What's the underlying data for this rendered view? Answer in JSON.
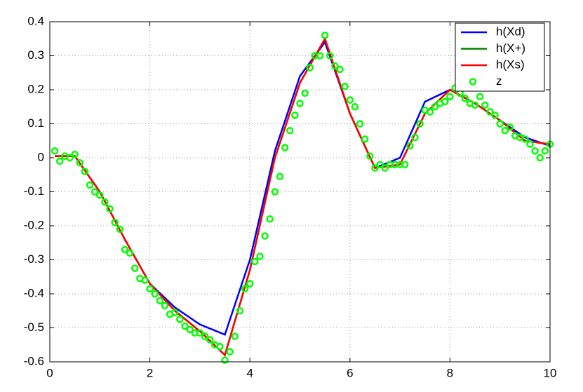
{
  "chart_data": {
    "type": "line",
    "xlim": [
      0,
      10
    ],
    "xticks": [
      0,
      2,
      4,
      6,
      8,
      10
    ],
    "ylim": [
      -0.6,
      0.4
    ],
    "yticks": [
      -0.6,
      -0.5,
      -0.4,
      -0.3,
      -0.2,
      -0.1,
      0,
      0.1,
      0.2,
      0.3,
      0.4
    ],
    "grid": true,
    "legend": "upper-right",
    "series": [
      {
        "name": "h(Xd)",
        "color": "#0000ff",
        "style": "line",
        "x": [
          0.1,
          0.5,
          1,
          1.5,
          2,
          2.5,
          3,
          3.5,
          4,
          4.5,
          5,
          5.5,
          6,
          6.5,
          7,
          7.5,
          8,
          8.5,
          9,
          9.5,
          10
        ],
        "values": [
          0.005,
          0.005,
          -0.1,
          -0.24,
          -0.37,
          -0.44,
          -0.49,
          -0.52,
          -0.3,
          0.02,
          0.24,
          0.34,
          0.13,
          -0.03,
          0.0,
          0.165,
          0.2,
          0.16,
          0.11,
          0.06,
          0.035
        ]
      },
      {
        "name": "h(X+)",
        "color": "#008000",
        "style": "line",
        "x": [
          0.1,
          0.5,
          1,
          1.5,
          2,
          2.5,
          3,
          3.5,
          4,
          4.5,
          5,
          5.5,
          6,
          6.5,
          7,
          7.5,
          8,
          8.5,
          9,
          9.5,
          10
        ],
        "values": [
          0.005,
          0.005,
          -0.1,
          -0.24,
          -0.37,
          -0.45,
          -0.51,
          -0.58,
          -0.33,
          0.0,
          0.22,
          0.35,
          0.13,
          -0.03,
          -0.02,
          0.13,
          0.2,
          0.16,
          0.11,
          0.05,
          0.04
        ]
      },
      {
        "name": "h(Xs)",
        "color": "#ff0000",
        "style": "line",
        "x": [
          0.1,
          0.5,
          1,
          1.5,
          2,
          2.5,
          3,
          3.5,
          4,
          4.5,
          5,
          5.5,
          6,
          6.5,
          7,
          7.5,
          8,
          8.5,
          9,
          9.5,
          10
        ],
        "values": [
          0.005,
          0.005,
          -0.1,
          -0.24,
          -0.37,
          -0.45,
          -0.51,
          -0.58,
          -0.33,
          0.0,
          0.22,
          0.35,
          0.13,
          -0.03,
          -0.02,
          0.13,
          0.2,
          0.16,
          0.11,
          0.05,
          0.04
        ]
      },
      {
        "name": "z",
        "color": "#00ff00",
        "style": "marker",
        "x": [
          0.1,
          0.2,
          0.3,
          0.4,
          0.5,
          0.6,
          0.7,
          0.8,
          0.9,
          1.0,
          1.1,
          1.2,
          1.3,
          1.4,
          1.5,
          1.6,
          1.7,
          1.8,
          1.9,
          2.0,
          2.1,
          2.2,
          2.3,
          2.4,
          2.5,
          2.6,
          2.7,
          2.8,
          2.9,
          3.0,
          3.1,
          3.2,
          3.3,
          3.4,
          3.5,
          3.6,
          3.7,
          3.8,
          3.9,
          4.0,
          4.1,
          4.2,
          4.3,
          4.4,
          4.5,
          4.6,
          4.7,
          4.8,
          4.9,
          5.0,
          5.1,
          5.2,
          5.3,
          5.4,
          5.5,
          5.6,
          5.7,
          5.8,
          5.9,
          6.0,
          6.1,
          6.2,
          6.3,
          6.4,
          6.5,
          6.6,
          6.7,
          6.8,
          6.9,
          7.0,
          7.1,
          7.2,
          7.3,
          7.4,
          7.5,
          7.6,
          7.7,
          7.8,
          7.9,
          8.0,
          8.1,
          8.2,
          8.3,
          8.4,
          8.5,
          8.6,
          8.7,
          8.8,
          8.9,
          9.0,
          9.1,
          9.2,
          9.3,
          9.4,
          9.5,
          9.6,
          9.7,
          9.8,
          9.9,
          10.0
        ],
        "values": [
          0.02,
          -0.01,
          0.005,
          0.0,
          0.01,
          -0.015,
          -0.04,
          -0.08,
          -0.1,
          -0.11,
          -0.13,
          -0.15,
          -0.19,
          -0.21,
          -0.27,
          -0.28,
          -0.325,
          -0.355,
          -0.36,
          -0.385,
          -0.4,
          -0.42,
          -0.435,
          -0.46,
          -0.455,
          -0.475,
          -0.495,
          -0.505,
          -0.515,
          -0.515,
          -0.525,
          -0.535,
          -0.55,
          -0.555,
          -0.595,
          -0.57,
          -0.525,
          -0.45,
          -0.385,
          -0.37,
          -0.305,
          -0.29,
          -0.23,
          -0.18,
          -0.1,
          -0.055,
          0.03,
          0.08,
          0.125,
          0.16,
          0.19,
          0.265,
          0.3,
          0.3,
          0.36,
          0.3,
          0.27,
          0.26,
          0.21,
          0.17,
          0.15,
          0.1,
          0.055,
          0.005,
          -0.03,
          -0.02,
          -0.03,
          -0.02,
          -0.02,
          -0.02,
          -0.02,
          0.035,
          0.06,
          0.1,
          0.14,
          0.135,
          0.15,
          0.16,
          0.165,
          0.18,
          0.205,
          0.19,
          0.175,
          0.16,
          0.155,
          0.18,
          0.155,
          0.135,
          0.125,
          0.1,
          0.08,
          0.09,
          0.065,
          0.06,
          0.055,
          0.04,
          0.02,
          0.0,
          0.02,
          0.04
        ]
      }
    ]
  }
}
